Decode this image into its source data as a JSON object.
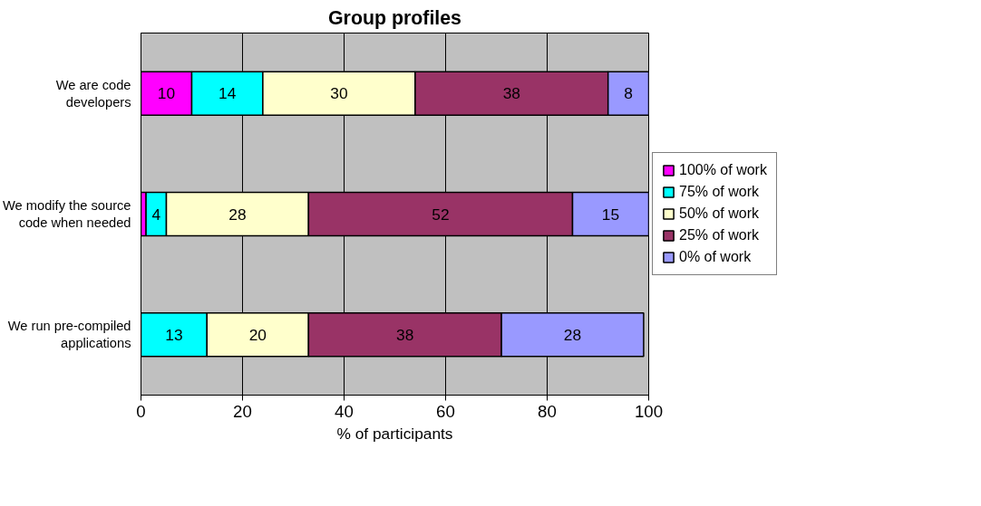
{
  "chart_data": {
    "type": "bar",
    "orientation": "horizontal",
    "stacked": true,
    "title": "Group profiles",
    "xlabel": "% of participants",
    "categories": [
      "We are code developers",
      "We modify the source code when needed",
      "We run pre-compiled applications"
    ],
    "series": [
      {
        "name": "100% of work",
        "color": "#ff00ff",
        "values": [
          10,
          1,
          0
        ],
        "value_labels": [
          "10",
          null,
          null
        ]
      },
      {
        "name": "75% of work",
        "color": "#00ffff",
        "values": [
          14,
          4,
          13
        ],
        "value_labels": [
          "14",
          "4",
          "13"
        ]
      },
      {
        "name": "50% of work",
        "color": "#ffffcc",
        "values": [
          30,
          28,
          20
        ],
        "value_labels": [
          "30",
          "28",
          "20"
        ]
      },
      {
        "name": "25% of work",
        "color": "#993366",
        "values": [
          38,
          52,
          38
        ],
        "value_labels": [
          "38",
          "52",
          "38"
        ]
      },
      {
        "name": "0% of work",
        "color": "#9999ff",
        "values": [
          8,
          15,
          28
        ],
        "value_labels": [
          "8",
          "15",
          "28"
        ]
      }
    ],
    "xlim": [
      0,
      100
    ],
    "xticks": [
      0,
      20,
      40,
      60,
      80,
      100
    ],
    "grid": "x",
    "legend": "right"
  }
}
